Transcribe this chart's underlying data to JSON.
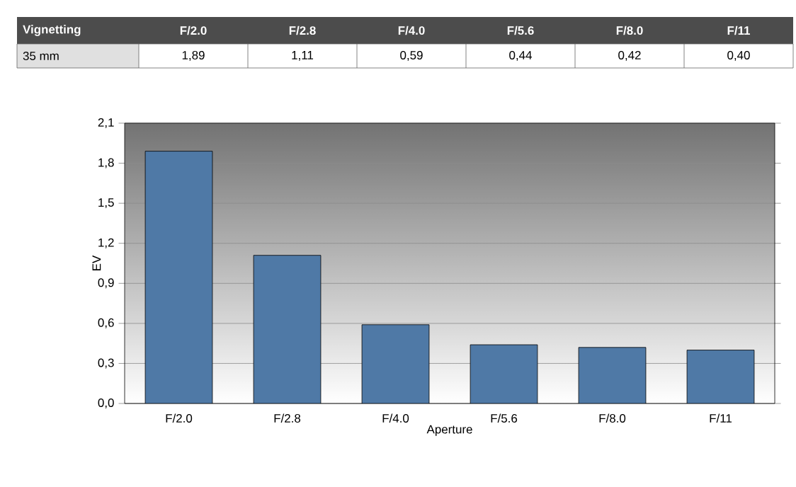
{
  "chart_data": {
    "type": "bar",
    "title": "Vignetting",
    "categories": [
      "F/2.0",
      "F/2.8",
      "F/4.0",
      "F/5.6",
      "F/8.0",
      "F/11"
    ],
    "series": [
      {
        "name": "35 mm",
        "color": "#4f79a6",
        "values": [
          1.89,
          1.11,
          0.59,
          0.44,
          0.42,
          0.4
        ],
        "value_labels": [
          "1,89",
          "1,11",
          "0,59",
          "0,44",
          "0,42",
          "0,40"
        ]
      }
    ],
    "xlabel": "Aperture",
    "ylabel": "EV",
    "ylim": [
      0,
      2.1
    ],
    "yticks": [
      {
        "value": 0,
        "label": "0,0"
      },
      {
        "value": 0.3,
        "label": "0,3"
      },
      {
        "value": 0.6,
        "label": "0,6"
      },
      {
        "value": 0.9,
        "label": "0,9"
      },
      {
        "value": 1.2,
        "label": "1,2"
      },
      {
        "value": 1.5,
        "label": "1,5"
      },
      {
        "value": 1.8,
        "label": "1,8"
      },
      {
        "value": 2.1,
        "label": "2,1"
      }
    ],
    "grid": "y"
  }
}
